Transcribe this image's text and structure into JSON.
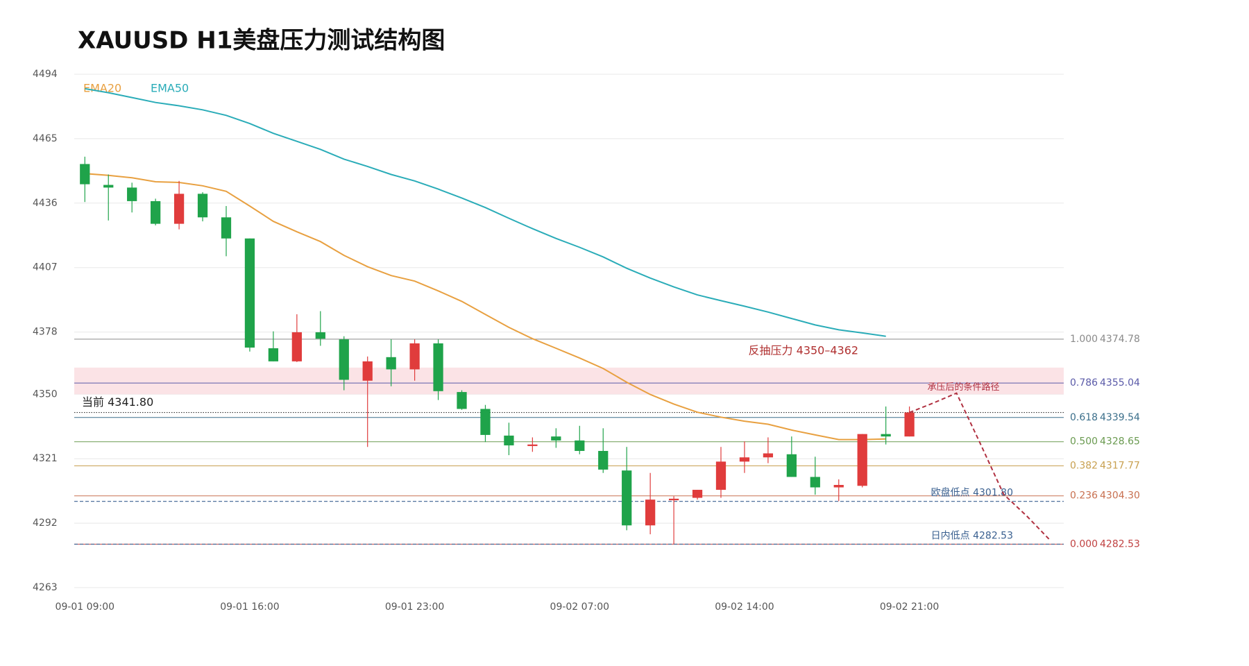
{
  "chart_data": {
    "type": "candlestick",
    "title": "XAUUSD  H1美盘压力测试结构图",
    "categories": [
      "09-01 09:00",
      null,
      null,
      null,
      null,
      null,
      null,
      "09-01 16:00",
      null,
      null,
      null,
      null,
      null,
      null,
      "09-01 23:00",
      null,
      null,
      null,
      null,
      null,
      null,
      "09-02 07:00",
      null,
      null,
      null,
      null,
      null,
      null,
      "09-02 14:00",
      null,
      null,
      null,
      null,
      null,
      null,
      "09-02 21:00",
      null,
      null,
      null,
      null,
      null,
      null
    ],
    "open": [
      4453.6,
      4444.2,
      4443.0,
      4436.9,
      4426.7,
      4440.2,
      4429.6,
      4420.1,
      4370.7,
      4364.8,
      4377.9,
      4374.7,
      4356.1,
      4366.7,
      4361.2,
      4372.9,
      4351.0,
      4343.4,
      4331.4,
      4326.7,
      4331.0,
      4329.2,
      4324.5,
      4315.7,
      4291.0,
      4302.3,
      4303.4,
      4307.0,
      4319.7,
      4321.6,
      4323.0,
      4312.8,
      4308.1,
      4308.8,
      4332.1,
      4331.0,
      null,
      null,
      null,
      null,
      null,
      null
    ],
    "high": [
      4456.9,
      4448.9,
      4445.2,
      4438.0,
      4446.0,
      4440.9,
      4434.7,
      4420.1,
      4378.3,
      4386.0,
      4387.4,
      4376.1,
      4367.0,
      4374.7,
      4374.7,
      4374.7,
      4351.8,
      4345.2,
      4337.2,
      4330.6,
      4334.7,
      4335.8,
      4334.7,
      4326.3,
      4314.6,
      4304.1,
      4307.0,
      4326.3,
      4328.8,
      4330.6,
      4331.0,
      4321.9,
      4311.7,
      4332.1,
      4344.5,
      4344.5,
      null,
      null,
      null,
      null,
      null,
      null
    ],
    "low": [
      4436.5,
      4428.2,
      4431.8,
      4426.0,
      4424.2,
      4427.8,
      4412.1,
      4369.2,
      4364.8,
      4364.5,
      4371.8,
      4351.8,
      4326.3,
      4353.6,
      4356.1,
      4347.4,
      4343.0,
      4328.5,
      4322.6,
      4324.1,
      4325.9,
      4323.0,
      4314.6,
      4288.8,
      4287.0,
      4282.6,
      4302.6,
      4303.4,
      4314.6,
      4319.0,
      4312.8,
      4304.8,
      4301.9,
      4308.1,
      4327.4,
      4331.0,
      null,
      null,
      null,
      null,
      null,
      null
    ],
    "close": [
      4444.5,
      4443.0,
      4436.9,
      4426.7,
      4440.2,
      4429.6,
      4420.1,
      4371.0,
      4364.8,
      4377.9,
      4375.0,
      4356.5,
      4364.8,
      4361.2,
      4372.9,
      4351.4,
      4343.4,
      4331.7,
      4327.0,
      4327.4,
      4329.2,
      4324.5,
      4316.1,
      4291.0,
      4302.6,
      4303.0,
      4307.0,
      4319.7,
      4321.6,
      4323.4,
      4312.8,
      4308.1,
      4309.2,
      4332.1,
      4331.0,
      4341.8,
      null,
      null,
      null,
      null,
      null,
      null
    ],
    "up_color": "#e03c3c",
    "down_color": "#1fa34a",
    "series": [
      {
        "name": "EMA20",
        "color": "#e8a040",
        "values": [
          4449.3,
          4448.5,
          4447.4,
          4445.6,
          4445.3,
          4443.8,
          4441.3,
          4434.7,
          4427.8,
          4423.1,
          4418.7,
          4412.5,
          4407.4,
          4403.4,
          4400.9,
          4396.5,
          4391.8,
          4385.9,
          4380.1,
          4375.0,
          4370.7,
          4366.3,
          4361.6,
          4355.4,
          4349.9,
          4345.6,
          4341.9,
          4339.7,
          4337.9,
          4336.5,
          4333.9,
          4331.7,
          4329.6,
          4329.6,
          4329.9,
          null,
          null,
          null,
          null,
          null,
          null,
          null
        ]
      },
      {
        "name": "EMA50",
        "color": "#2aacb8",
        "values": [
          4487.5,
          4485.7,
          4483.5,
          4481.3,
          4479.8,
          4478.0,
          4475.5,
          4471.8,
          4467.4,
          4463.8,
          4460.2,
          4455.8,
          4452.5,
          4448.9,
          4446.0,
          4442.3,
          4438.3,
          4434.0,
          4429.2,
          4424.5,
          4420.1,
          4416.1,
          4411.8,
          4406.7,
          4402.3,
          4398.3,
          4394.7,
          4392.1,
          4389.6,
          4387.0,
          4384.1,
          4381.2,
          4379.0,
          4377.6,
          4376.1,
          null,
          null,
          null,
          null,
          null,
          null,
          null
        ]
      }
    ],
    "projection": {
      "name": "承压后的条件路径",
      "color": "#b03040",
      "values": [
        null,
        null,
        null,
        null,
        null,
        null,
        null,
        null,
        null,
        null,
        null,
        null,
        null,
        null,
        null,
        null,
        null,
        null,
        null,
        null,
        null,
        null,
        null,
        null,
        null,
        null,
        null,
        null,
        null,
        null,
        null,
        null,
        null,
        null,
        null,
        4341.8,
        4346.0,
        4350.5,
        4328.0,
        4305.0,
        4295.0,
        4284.0
      ]
    },
    "zone": {
      "label": "反抽压力  4350–4362",
      "low": 4350,
      "high": 4362,
      "color": "#fbe3e6",
      "text_color": "#b03030"
    },
    "levels": [
      {
        "ratio": "1.000",
        "value": 4374.78,
        "label": "4374.78",
        "color": "#8a8a8a"
      },
      {
        "ratio": "0.786",
        "value": 4355.04,
        "label": "4355.04",
        "color": "#5a5aa8"
      },
      {
        "ratio": "0.618",
        "value": 4339.54,
        "label": "4339.54",
        "color": "#3a6e8a"
      },
      {
        "ratio": "0.500",
        "value": 4328.65,
        "label": "4328.65",
        "color": "#6a9a50"
      },
      {
        "ratio": "0.382",
        "value": 4317.77,
        "label": "4317.77",
        "color": "#c8a050"
      },
      {
        "ratio": "0.236",
        "value": 4304.3,
        "label": "4304.30",
        "color": "#c87050"
      },
      {
        "ratio": "0.000",
        "value": 4282.53,
        "label": "4282.53",
        "color": "#c04040"
      }
    ],
    "markers": [
      {
        "label": "当前 4341.80",
        "value": 4341.8,
        "color": "#333333",
        "style": "dotted",
        "side": "left"
      },
      {
        "label": "欧盘低点 4301.80",
        "value": 4301.8,
        "color": "#3a6090",
        "style": "dashed",
        "side": "right"
      },
      {
        "label": "日内低点 4282.53",
        "value": 4282.53,
        "color": "#3a6090",
        "style": "dashed",
        "side": "right"
      }
    ],
    "ylim": [
      4263,
      4494
    ],
    "yticks": [
      4263,
      4292,
      4321,
      4350,
      4378,
      4407,
      4436,
      4465,
      4494
    ],
    "grid": true
  }
}
